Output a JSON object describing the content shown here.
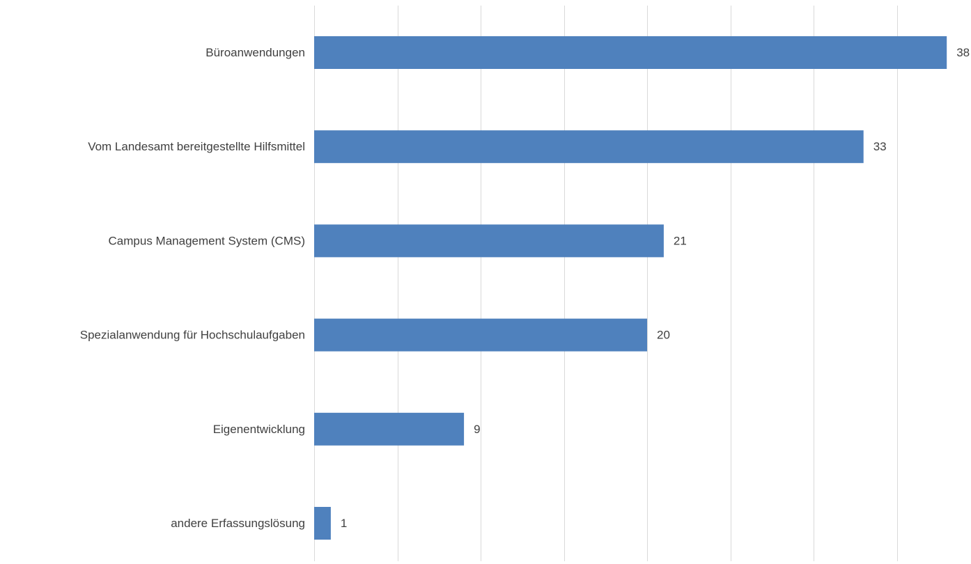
{
  "chart_data": {
    "type": "bar",
    "orientation": "horizontal",
    "categories": [
      "Büroanwendungen",
      "Vom Landesamt bereitgestellte Hilfsmittel",
      "Campus Management System (CMS)",
      "Spezialanwendung für Hochschulaufgaben",
      "Eigenentwicklung",
      "andere Erfassungslösung"
    ],
    "values": [
      38,
      33,
      21,
      20,
      9,
      1
    ],
    "value_labels": [
      "38",
      "33",
      "21",
      "20",
      "9",
      "1"
    ],
    "xlim": [
      0,
      40
    ],
    "x_gridline_step": 5,
    "x_tick_labels_visible": false,
    "grid": true,
    "bar_color": "#4f81bd",
    "gridline_color": "#d9d9d9",
    "label_color": "#404040"
  }
}
